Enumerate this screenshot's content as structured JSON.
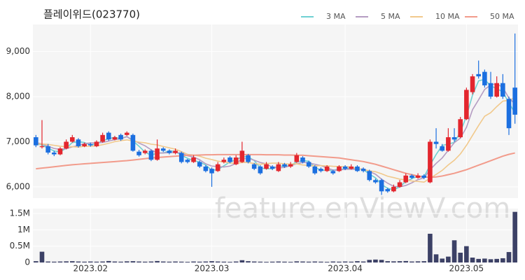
{
  "chart_data": [
    {
      "type": "candlestick",
      "title": "플레이위드(023770)",
      "watermark": "feature.enViewV.com",
      "up_color": "#e3262e",
      "down_color": "#1b6fe0",
      "categories": [
        null,
        null,
        null,
        null,
        null,
        null,
        null,
        null,
        null,
        "2023.02",
        null,
        null,
        null,
        null,
        null,
        null,
        null,
        null,
        null,
        null,
        null,
        null,
        null,
        null,
        null,
        null,
        null,
        null,
        null,
        "2023.03",
        null,
        null,
        null,
        null,
        null,
        null,
        null,
        null,
        null,
        null,
        null,
        null,
        null,
        null,
        null,
        null,
        null,
        null,
        null,
        null,
        null,
        "2023.04",
        null,
        null,
        null,
        null,
        null,
        null,
        null,
        null,
        null,
        null,
        null,
        null,
        null,
        null,
        null,
        null,
        null,
        null,
        null,
        "2023.05",
        null,
        null,
        null,
        null,
        null,
        null,
        null,
        null
      ],
      "open": [
        7100,
        6880,
        6900,
        6760,
        6720,
        6850,
        7000,
        7050,
        6900,
        6950,
        6900,
        7000,
        7200,
        7050,
        7150,
        7150,
        7150,
        6780,
        6750,
        6800,
        6600,
        6850,
        6800,
        6750,
        6750,
        6600,
        6550,
        6550,
        6450,
        6400,
        6350,
        6550,
        6650,
        6500,
        6550,
        6700,
        6500,
        6450,
        6400,
        6450,
        6350,
        6500,
        6450,
        6550,
        6650,
        6550,
        6450,
        6400,
        6350,
        6350,
        6350,
        6450,
        6400,
        6450,
        6400,
        6350,
        6150,
        6150,
        5950,
        5900,
        6000,
        6100,
        6250,
        6200,
        6250,
        6100,
        7000,
        6900,
        6800,
        7100,
        7100,
        7500,
        8100,
        8500,
        8550,
        8300,
        8000,
        8300,
        7950,
        8200
      ],
      "high": [
        7150,
        7480,
        6950,
        6800,
        6880,
        7050,
        7150,
        7080,
        6980,
        6980,
        7030,
        7200,
        7230,
        7130,
        7180,
        7230,
        7180,
        6820,
        6830,
        6830,
        7050,
        6880,
        6830,
        6850,
        6780,
        6620,
        6700,
        6580,
        6480,
        6430,
        6550,
        6650,
        6680,
        6700,
        7000,
        6730,
        6530,
        6480,
        6550,
        6480,
        6550,
        6530,
        6550,
        6750,
        6680,
        6580,
        6480,
        6430,
        6480,
        6380,
        6480,
        6480,
        6500,
        6480,
        6430,
        6380,
        6180,
        6180,
        5980,
        6050,
        6150,
        6300,
        6280,
        6300,
        6280,
        7050,
        7300,
        6950,
        7300,
        7300,
        7550,
        8200,
        8500,
        8800,
        8600,
        8550,
        8450,
        8500,
        8000,
        9400
      ],
      "low": [
        6880,
        6850,
        6720,
        6680,
        6700,
        6830,
        6980,
        6870,
        6880,
        6890,
        6880,
        6980,
        7020,
        7030,
        7020,
        7130,
        6780,
        6670,
        6720,
        6570,
        6580,
        6770,
        6720,
        6720,
        6520,
        6520,
        6530,
        6420,
        6320,
        6000,
        6330,
        6520,
        6520,
        6480,
        6530,
        6520,
        6370,
        6270,
        6380,
        6370,
        6330,
        6420,
        6420,
        6530,
        6520,
        6420,
        6270,
        6320,
        6330,
        6270,
        6330,
        6370,
        6380,
        6330,
        6320,
        6120,
        6070,
        5820,
        5870,
        5880,
        5980,
        6080,
        6170,
        6180,
        6170,
        6080,
        6850,
        6780,
        6780,
        7000,
        7080,
        7480,
        8050,
        8400,
        8200,
        7950,
        7980,
        7950,
        7150,
        7400
      ],
      "close": [
        6920,
        6900,
        6760,
        6720,
        6850,
        7000,
        7100,
        6900,
        6950,
        6920,
        7000,
        7150,
        7050,
        7100,
        7050,
        7200,
        6800,
        6700,
        6800,
        6600,
        6850,
        6800,
        6750,
        6800,
        6550,
        6550,
        6650,
        6450,
        6350,
        6300,
        6500,
        6600,
        6550,
        6650,
        6800,
        6550,
        6400,
        6300,
        6500,
        6400,
        6500,
        6450,
        6500,
        6700,
        6550,
        6450,
        6300,
        6350,
        6450,
        6300,
        6450,
        6400,
        6450,
        6350,
        6350,
        6150,
        6100,
        5900,
        5900,
        6000,
        6100,
        6250,
        6200,
        6250,
        6200,
        7000,
        6950,
        6800,
        7100,
        7050,
        7500,
        8150,
        8450,
        8450,
        8250,
        8000,
        8300,
        8000,
        7300,
        7600
      ],
      "series": [
        {
          "name": "3 MA",
          "color": "#6fd0d2",
          "values": [
            6950,
            6930,
            6860,
            6793,
            6777,
            6857,
            6983,
            7000,
            6983,
            6923,
            6957,
            7023,
            7067,
            7100,
            7067,
            7117,
            7017,
            6900,
            6767,
            6700,
            6750,
            6750,
            6800,
            6783,
            6700,
            6633,
            6583,
            6550,
            6483,
            6367,
            6383,
            6467,
            6550,
            6600,
            6667,
            6667,
            6583,
            6417,
            6400,
            6400,
            6467,
            6450,
            6483,
            6550,
            6583,
            6567,
            6433,
            6367,
            6367,
            6367,
            6400,
            6383,
            6433,
            6400,
            6383,
            6283,
            6200,
            6050,
            5967,
            5933,
            6000,
            6117,
            6183,
            6233,
            6217,
            6483,
            6717,
            6917,
            6950,
            6983,
            7217,
            7567,
            8033,
            8350,
            8383,
            8233,
            8183,
            8100,
            7867,
            7633
          ]
        },
        {
          "name": "5 MA",
          "color": "#b59cc2",
          "values": [
            6980,
            6950,
            6900,
            6850,
            6830,
            6846,
            6886,
            6914,
            6960,
            6974,
            6974,
            6984,
            7014,
            7044,
            7070,
            7110,
            7040,
            6970,
            6910,
            6820,
            6750,
            6750,
            6760,
            6760,
            6750,
            6690,
            6660,
            6600,
            6510,
            6460,
            6450,
            6440,
            6460,
            6520,
            6620,
            6630,
            6590,
            6540,
            6510,
            6430,
            6420,
            6430,
            6470,
            6510,
            6540,
            6530,
            6500,
            6470,
            6420,
            6370,
            6370,
            6390,
            6390,
            6390,
            6400,
            6340,
            6280,
            6170,
            6080,
            6010,
            6000,
            6030,
            6090,
            6160,
            6200,
            6380,
            6520,
            6640,
            6810,
            6980,
            7080,
            7320,
            7710,
            7930,
            8160,
            8260,
            8290,
            8200,
            7970,
            7840
          ]
        },
        {
          "name": "10 MA",
          "color": "#f1c98c",
          "values": [
            6950,
            6950,
            6940,
            6920,
            6900,
            6890,
            6890,
            6880,
            6900,
            6900,
            6910,
            6935,
            6965,
            7002,
            7022,
            7042,
            7012,
            6992,
            6977,
            6945,
            6930,
            6895,
            6865,
            6835,
            6780,
            6720,
            6705,
            6680,
            6635,
            6605,
            6570,
            6550,
            6530,
            6515,
            6540,
            6540,
            6515,
            6500,
            6515,
            6525,
            6525,
            6510,
            6505,
            6510,
            6485,
            6475,
            6465,
            6470,
            6465,
            6455,
            6450,
            6445,
            6440,
            6405,
            6385,
            6355,
            6335,
            6290,
            6235,
            6205,
            6170,
            6155,
            6130,
            6120,
            6105,
            6190,
            6275,
            6365,
            6485,
            6590,
            6730,
            6920,
            7140,
            7360,
            7565,
            7645,
            7780,
            7900,
            7920,
            7975
          ]
        },
        {
          "name": "50 MA",
          "color": "#f29b8b",
          "values": [
            6400,
            6415,
            6430,
            6445,
            6460,
            6475,
            6490,
            6500,
            6510,
            6520,
            6530,
            6540,
            6550,
            6560,
            6570,
            6580,
            6595,
            6610,
            6625,
            6640,
            6650,
            6660,
            6670,
            6680,
            6690,
            6700,
            6700,
            6705,
            6710,
            6710,
            6715,
            6715,
            6715,
            6715,
            6715,
            6715,
            6715,
            6715,
            6710,
            6710,
            6710,
            6705,
            6705,
            6700,
            6700,
            6690,
            6680,
            6670,
            6660,
            6650,
            6640,
            6620,
            6600,
            6580,
            6560,
            6530,
            6500,
            6460,
            6420,
            6380,
            6340,
            6300,
            6270,
            6240,
            6220,
            6210,
            6220,
            6240,
            6270,
            6300,
            6340,
            6380,
            6430,
            6480,
            6530,
            6580,
            6630,
            6680,
            6720,
            6750
          ]
        }
      ],
      "ylim": [
        5750,
        9600
      ],
      "yticks": [
        {
          "value": 6000,
          "label": "6,000"
        },
        {
          "value": 7000,
          "label": "7,000"
        },
        {
          "value": 8000,
          "label": "8,000"
        },
        {
          "value": 9000,
          "label": "9,000"
        }
      ],
      "grid": true,
      "legend": "top-right"
    },
    {
      "type": "bar",
      "color": "#3c4166",
      "values": [
        40000,
        330000,
        30000,
        25000,
        30000,
        35000,
        40000,
        30000,
        25000,
        30000,
        25000,
        30000,
        45000,
        30000,
        25000,
        35000,
        40000,
        30000,
        25000,
        30000,
        45000,
        30000,
        25000,
        30000,
        25000,
        20000,
        30000,
        25000,
        30000,
        40000,
        30000,
        25000,
        20000,
        30000,
        70000,
        40000,
        30000,
        25000,
        20000,
        25000,
        30000,
        25000,
        20000,
        35000,
        30000,
        25000,
        30000,
        25000,
        20000,
        30000,
        25000,
        30000,
        25000,
        40000,
        30000,
        80000,
        90000,
        80000,
        40000,
        35000,
        40000,
        45000,
        30000,
        35000,
        40000,
        880000,
        250000,
        120000,
        180000,
        680000,
        300000,
        500000,
        150000,
        110000,
        120000,
        100000,
        110000,
        130000,
        320000,
        1550000
      ],
      "ylim": [
        0,
        1650000
      ],
      "yticks": [
        0,
        {
          "value": 500000,
          "label": "0.5M"
        },
        {
          "value": 1000000,
          "label": "1M"
        },
        {
          "value": 1500000,
          "label": "1.5M"
        }
      ],
      "grid": true
    }
  ]
}
